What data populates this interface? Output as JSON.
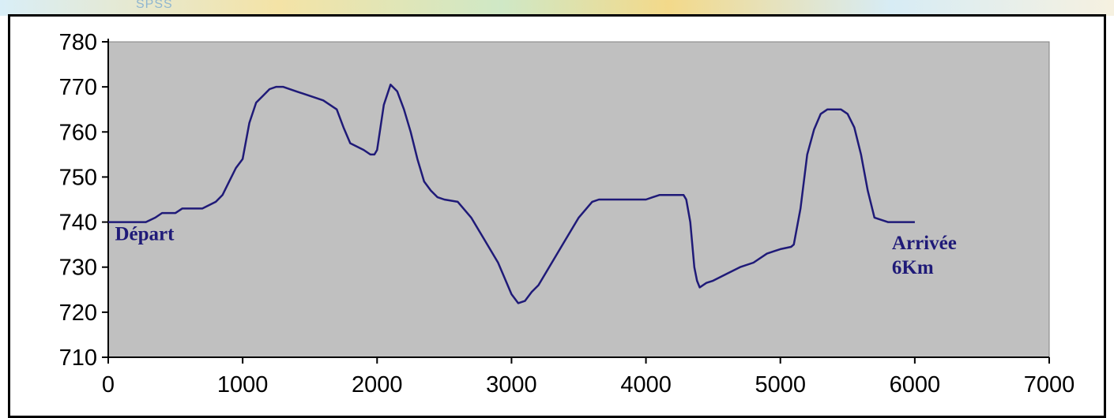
{
  "background": {
    "partial_text": "SPSS"
  },
  "chart_data": {
    "type": "line",
    "title": "",
    "xlabel": "",
    "ylabel": "",
    "xlim": [
      0,
      7000
    ],
    "ylim": [
      710,
      780
    ],
    "xticks": [
      0,
      1000,
      2000,
      3000,
      4000,
      5000,
      6000,
      7000
    ],
    "yticks": [
      710,
      720,
      730,
      740,
      750,
      760,
      770,
      780
    ],
    "xtick_labels": [
      "0",
      "1000",
      "2000",
      "3000",
      "4000",
      "5000",
      "6000",
      "7000"
    ],
    "ytick_labels": [
      "710",
      "720",
      "730",
      "740",
      "750",
      "760",
      "770",
      "780"
    ],
    "grid": false,
    "legend": "none",
    "plot_background": "#c0c0c0",
    "line_color": "#1f1a78",
    "series": [
      {
        "x": [
          0,
          280,
          350,
          400,
          500,
          550,
          600,
          700,
          800,
          850,
          900,
          950,
          1000,
          1050,
          1100,
          1150,
          1200,
          1250,
          1300,
          1400,
          1500,
          1600,
          1700,
          1750,
          1800,
          1900,
          1950,
          1980,
          2000,
          2050,
          2100,
          2150,
          2200,
          2250,
          2300,
          2350,
          2400,
          2450,
          2500,
          2600,
          2700,
          2800,
          2900,
          3000,
          3050,
          3100,
          3150,
          3200,
          3300,
          3400,
          3500,
          3600,
          3650,
          3700,
          3800,
          3900,
          4000,
          4050,
          4100,
          4200,
          4280,
          4300,
          4330,
          4360,
          4380,
          4400,
          4450,
          4500,
          4600,
          4700,
          4800,
          4900,
          4950,
          5000,
          5080,
          5100,
          5150,
          5200,
          5250,
          5300,
          5350,
          5400,
          5450,
          5500,
          5550,
          5600,
          5650,
          5700,
          5800,
          6000
        ],
        "y": [
          740,
          740,
          741,
          742,
          742,
          743,
          743,
          743,
          744.5,
          746,
          749,
          752,
          754,
          762,
          766.5,
          768,
          769.5,
          770,
          770,
          769,
          768,
          767,
          765,
          761,
          757.5,
          756,
          755,
          755,
          756,
          766,
          770.5,
          769,
          765,
          760,
          754,
          749,
          747,
          745.5,
          745,
          744.5,
          741,
          736,
          731,
          724,
          722,
          722.5,
          724.5,
          726,
          731,
          736,
          741,
          744.5,
          745,
          745,
          745,
          745,
          745,
          745.5,
          746,
          746,
          746,
          745,
          740,
          730,
          727,
          725.5,
          726.5,
          727,
          728.5,
          730,
          731,
          733,
          733.5,
          734,
          734.5,
          735,
          743,
          755,
          760.5,
          764,
          765,
          765,
          765,
          764,
          761,
          755,
          747,
          741,
          740,
          740
        ]
      }
    ],
    "annotations": [
      {
        "id": "start",
        "lines": [
          "Départ"
        ],
        "x": 50,
        "y": 736
      },
      {
        "id": "end",
        "lines": [
          "Arrivée",
          "6Km"
        ],
        "x": 5830,
        "y": 734
      }
    ]
  }
}
